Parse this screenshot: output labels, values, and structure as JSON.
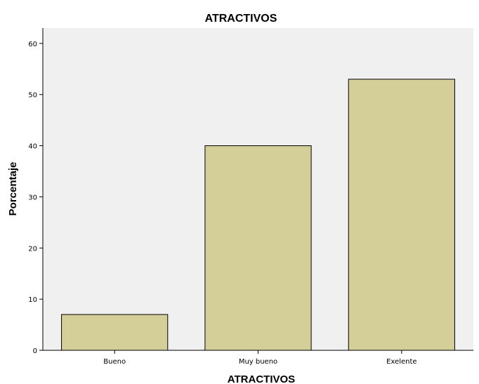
{
  "chart_data": {
    "type": "bar",
    "title": "ATRACTIVOS",
    "xlabel": "ATRACTIVOS",
    "ylabel": "Porcentaje",
    "categories": [
      "Bueno",
      "Muy bueno",
      "Exelente"
    ],
    "values": [
      7,
      40,
      53
    ],
    "ylim": [
      0,
      63
    ],
    "yticks": [
      0,
      10,
      20,
      30,
      40,
      50,
      60
    ],
    "grid": false,
    "colors": {
      "bar_fill": "#d4cf98",
      "bar_stroke": "#000000",
      "plot_background": "#f0f0f0"
    }
  }
}
